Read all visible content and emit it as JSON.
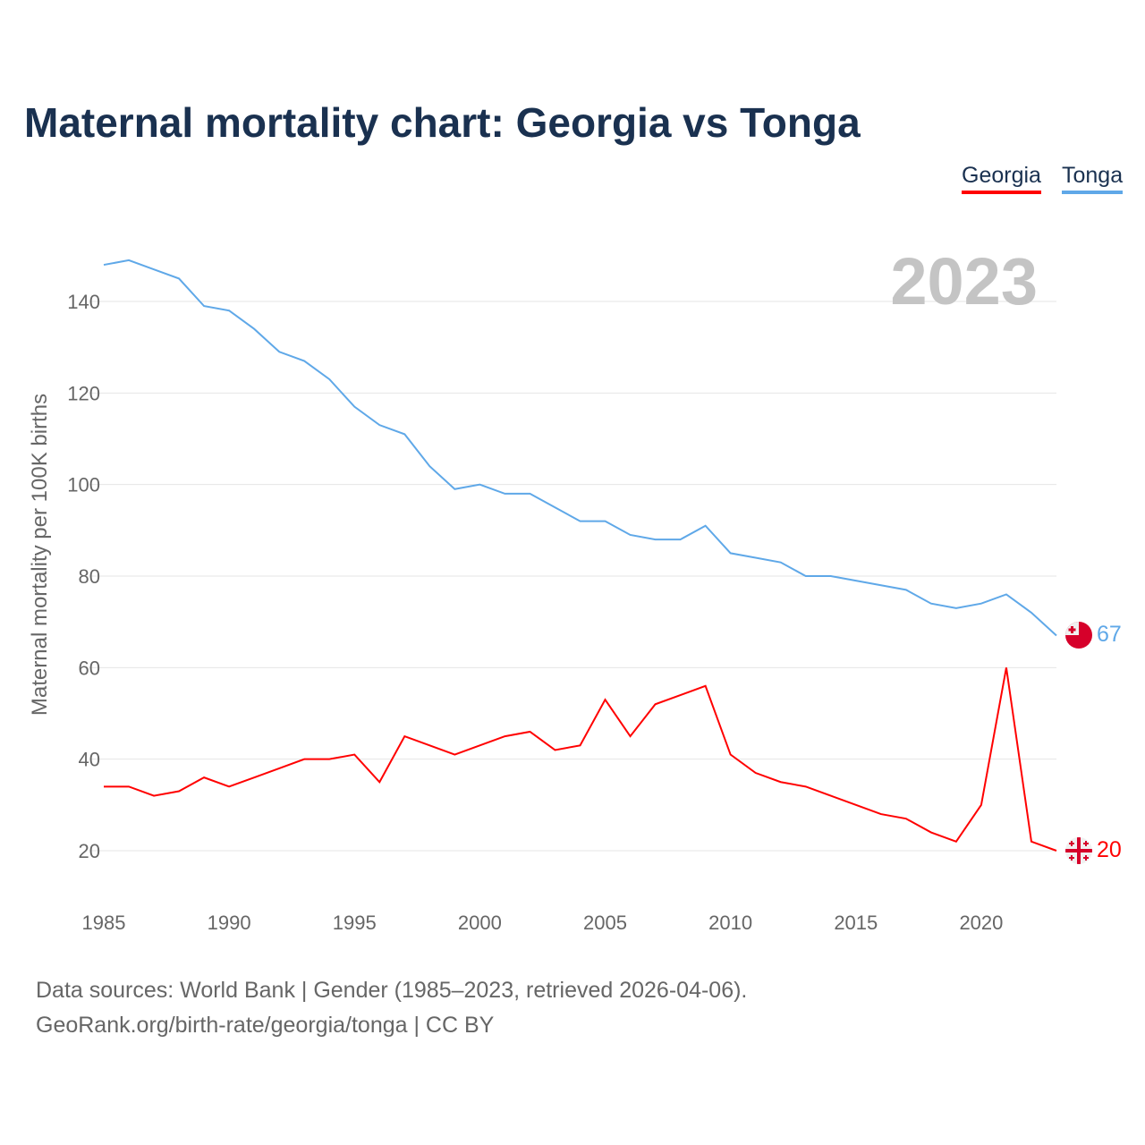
{
  "title": "Maternal mortality chart: Georgia vs Tonga",
  "year_badge": "2023",
  "footer": {
    "line1": "Data sources: World Bank | Gender (1985–2023, retrieved 2026-04-06).",
    "line2": "GeoRank.org/birth-rate/georgia/tonga | CC BY"
  },
  "chart_data": {
    "type": "line",
    "title": "Maternal mortality chart: Georgia vs Tonga",
    "xlabel": "",
    "ylabel": "Maternal mortality per 100K births",
    "xlim": [
      1985,
      2023
    ],
    "ylim": [
      10,
      150
    ],
    "x_ticks": [
      1985,
      1990,
      1995,
      2000,
      2005,
      2010,
      2015,
      2020
    ],
    "y_ticks": [
      20,
      40,
      60,
      80,
      100,
      120,
      140
    ],
    "grid": true,
    "legend_position": "top-right",
    "x": [
      1985,
      1986,
      1987,
      1988,
      1989,
      1990,
      1991,
      1992,
      1993,
      1994,
      1995,
      1996,
      1997,
      1998,
      1999,
      2000,
      2001,
      2002,
      2003,
      2004,
      2005,
      2006,
      2007,
      2008,
      2009,
      2010,
      2011,
      2012,
      2013,
      2014,
      2015,
      2016,
      2017,
      2018,
      2019,
      2020,
      2021,
      2022,
      2023
    ],
    "series": [
      {
        "name": "Georgia",
        "color": "#ff0000",
        "end_label": "20",
        "flag": "georgia-flag",
        "values": [
          34,
          34,
          32,
          33,
          36,
          34,
          36,
          38,
          40,
          40,
          41,
          35,
          45,
          43,
          41,
          43,
          45,
          46,
          42,
          43,
          53,
          45,
          52,
          54,
          56,
          41,
          37,
          35,
          34,
          32,
          30,
          28,
          27,
          24,
          22,
          30,
          60,
          22,
          20
        ]
      },
      {
        "name": "Tonga",
        "color": "#5fa8e8",
        "end_label": "67",
        "flag": "tonga-flag",
        "values": [
          148,
          149,
          147,
          145,
          139,
          138,
          134,
          129,
          127,
          123,
          117,
          113,
          111,
          104,
          99,
          100,
          98,
          98,
          95,
          92,
          92,
          89,
          88,
          88,
          91,
          85,
          84,
          83,
          80,
          80,
          79,
          78,
          77,
          74,
          73,
          74,
          76,
          72,
          67
        ]
      }
    ]
  }
}
